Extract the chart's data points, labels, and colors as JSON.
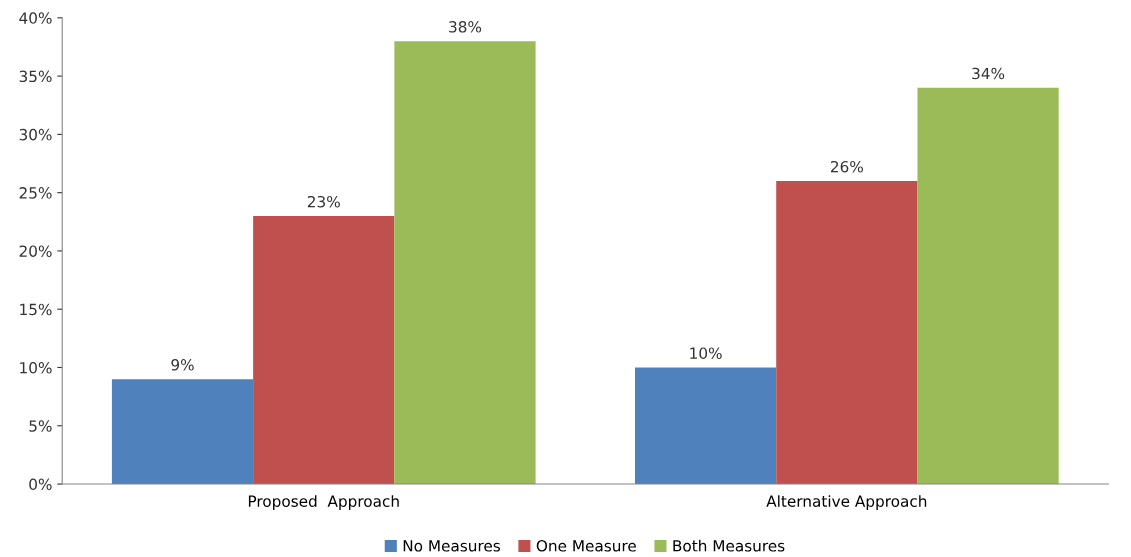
{
  "chart_data": {
    "type": "bar",
    "categories": [
      "Proposed  Approach",
      "Alternative Approach"
    ],
    "series": [
      {
        "name": "No Measures",
        "color": "#4f81bd",
        "values": [
          9,
          10
        ],
        "value_labels": [
          "9%",
          "10%"
        ]
      },
      {
        "name": "One Measure",
        "color": "#c0504d",
        "values": [
          23,
          26
        ],
        "value_labels": [
          "23%",
          "26%"
        ]
      },
      {
        "name": "Both Measures",
        "color": "#9bbb59",
        "values": [
          38,
          34
        ],
        "value_labels": [
          "38%",
          "34%"
        ]
      }
    ],
    "ylim": [
      0,
      40
    ],
    "yticks": [
      {
        "value": 0,
        "label": "0%"
      },
      {
        "value": 5,
        "label": "5%"
      },
      {
        "value": 10,
        "label": "10%"
      },
      {
        "value": 15,
        "label": "15%"
      },
      {
        "value": 20,
        "label": "20%"
      },
      {
        "value": 25,
        "label": "25%"
      },
      {
        "value": 30,
        "label": "30%"
      },
      {
        "value": 35,
        "label": "35%"
      },
      {
        "value": 40,
        "label": "40%"
      }
    ],
    "grid": false,
    "legend": "bottom"
  }
}
